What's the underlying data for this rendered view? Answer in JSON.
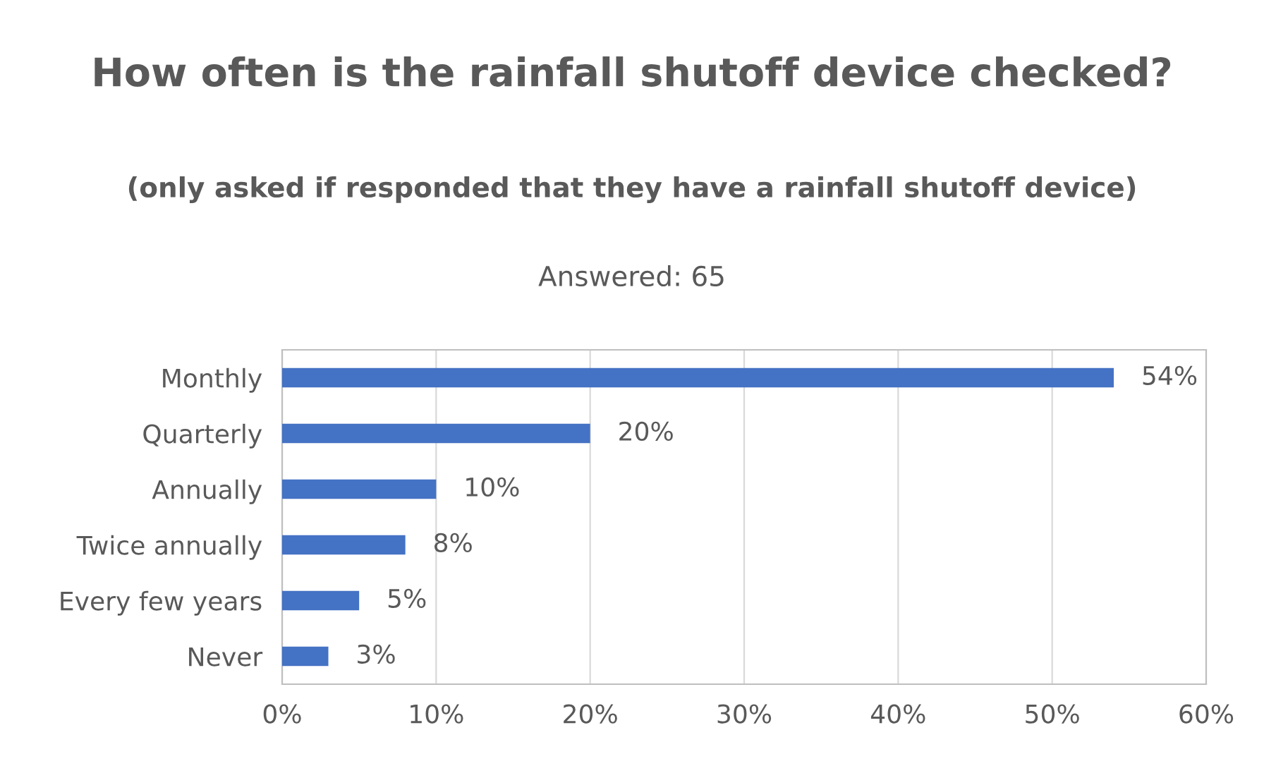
{
  "chart_data": {
    "type": "bar",
    "orientation": "horizontal",
    "title": "How often is the rainfall shutoff device checked?",
    "subtitle": "(only asked if responded that they have a rainfall shutoff device)",
    "annotations": [
      "Answered: 65"
    ],
    "categories": [
      "Monthly",
      "Quarterly",
      "Annually",
      "Twice annually",
      "Every few years",
      "Never"
    ],
    "values": [
      54,
      20,
      10,
      8,
      5,
      3
    ],
    "value_labels": [
      "54%",
      "20%",
      "10%",
      "8%",
      "5%",
      "3%"
    ],
    "color": "#4472c4",
    "xlim": [
      0,
      60
    ],
    "xticks": [
      {
        "value": 0,
        "label": "0%"
      },
      {
        "value": 10,
        "label": "10%"
      },
      {
        "value": 20,
        "label": "20%"
      },
      {
        "value": 30,
        "label": "30%"
      },
      {
        "value": 40,
        "label": "40%"
      },
      {
        "value": 50,
        "label": "50%"
      },
      {
        "value": 60,
        "label": "60%"
      }
    ],
    "grid": "x"
  }
}
